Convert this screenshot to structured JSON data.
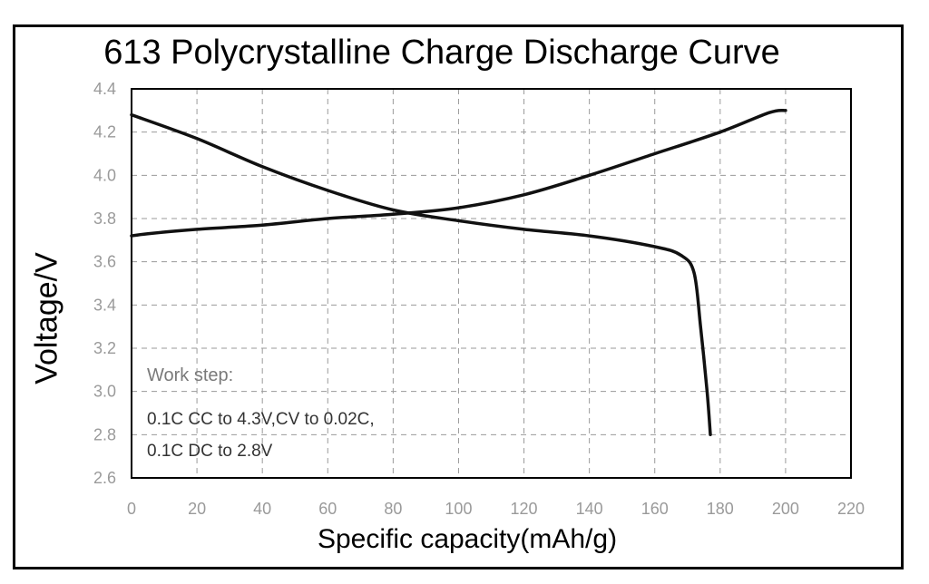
{
  "chart_data": {
    "type": "line",
    "title": "613 Polycrystalline Charge Discharge Curve",
    "xlabel": "Specific capacity(mAh/g)",
    "ylabel": "Voltage/V",
    "xlim": [
      0,
      220
    ],
    "ylim": [
      2.6,
      4.4
    ],
    "xticks": [
      "0",
      "20",
      "40",
      "60",
      "80",
      "100",
      "120",
      "140",
      "160",
      "180",
      "200",
      "220"
    ],
    "yticks": [
      "2.6",
      "2.8",
      "3.0",
      "3.2",
      "3.4",
      "3.6",
      "3.8",
      "4.0",
      "4.2",
      "4.4"
    ],
    "grid": true,
    "series": [
      {
        "x": [
          0,
          5,
          20,
          40,
          60,
          80,
          100,
          120,
          140,
          160,
          180,
          195,
          200
        ],
        "y": [
          3.72,
          3.73,
          3.75,
          3.77,
          3.8,
          3.82,
          3.85,
          3.91,
          4.0,
          4.1,
          4.2,
          4.29,
          4.3
        ]
      },
      {
        "x": [
          0,
          20,
          40,
          60,
          80,
          100,
          120,
          140,
          160,
          168,
          172,
          174,
          176,
          177
        ],
        "y": [
          4.28,
          4.17,
          4.04,
          3.93,
          3.84,
          3.79,
          3.75,
          3.72,
          3.67,
          3.63,
          3.55,
          3.3,
          3.0,
          2.8
        ]
      }
    ],
    "annotations": [
      "Work step:",
      "0.1C CC to 4.3V,CV to 0.02C,",
      "0.1C DC to 2.8V"
    ]
  }
}
